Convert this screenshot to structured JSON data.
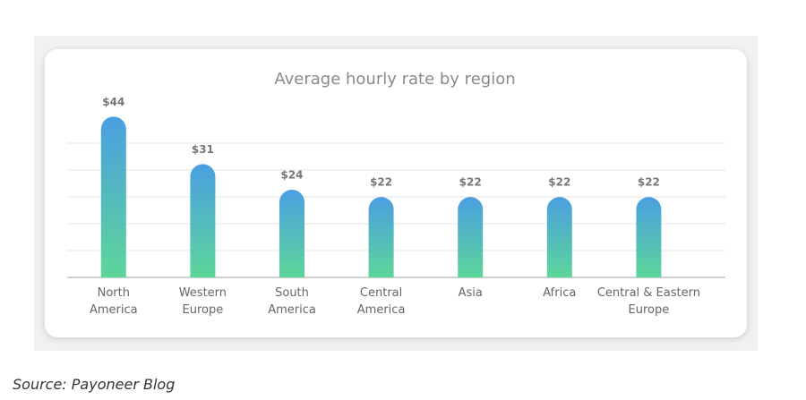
{
  "chart_data": {
    "type": "bar",
    "title": "Average hourly rate by region",
    "categories": [
      "North America",
      "Western Europe",
      "South America",
      "Central America",
      "Asia",
      "Africa",
      "Central & Eastern Europe"
    ],
    "values": [
      44,
      31,
      24,
      22,
      22,
      22,
      22
    ],
    "value_labels": [
      "$44",
      "$31",
      "$24",
      "$22",
      "$22",
      "$22",
      "$22"
    ],
    "color": [
      "#4a9fe0",
      "#5dd69a"
    ],
    "ylim": [
      0,
      48
    ]
  },
  "source": "Source: Payoneer Blog"
}
